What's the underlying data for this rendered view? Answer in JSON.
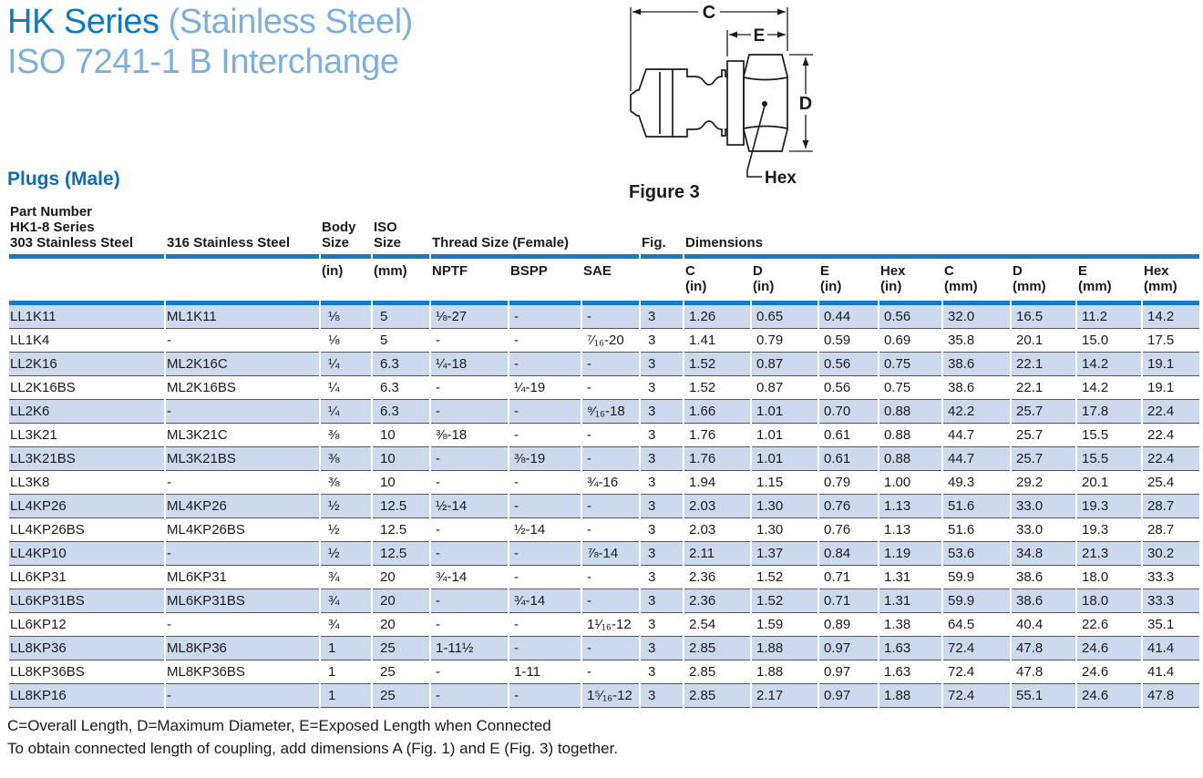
{
  "header": {
    "title_primary": "HK Series",
    "title_secondary": " (Stainless Steel)",
    "title_line2": "ISO 7241-1 B Interchange",
    "section_heading": "Plugs (Male)"
  },
  "figure": {
    "caption": "Figure 3",
    "labels": {
      "c": "C",
      "e": "E",
      "d": "D",
      "hex": "Hex"
    }
  },
  "colors": {
    "accent_blue": "#1b7abf",
    "row_shade": "#cdd9ec",
    "title_dark_blue": "#1079c1",
    "title_light_blue": "#7fb0dd",
    "heading_blue": "#0d6db6"
  },
  "table": {
    "group_header": {
      "part_number_lines": [
        "Part Number",
        "HK1-8 Series",
        "303 Stainless Steel"
      ],
      "col_316": "316 Stainless Steel",
      "body_size_lines": [
        "Body",
        "Size"
      ],
      "iso_size_lines": [
        "ISO",
        "Size"
      ],
      "thread_size": "Thread Size (Female)",
      "fig": "Fig.",
      "dimensions": "Dimensions"
    },
    "subheader": {
      "body_unit": "(in)",
      "iso_unit": "(mm)",
      "nptf": "NPTF",
      "bspp": "BSPP",
      "sae": "SAE",
      "dims": [
        [
          "C",
          "(in)"
        ],
        [
          "D",
          "(in)"
        ],
        [
          "E",
          "(in)"
        ],
        [
          "Hex",
          "(in)"
        ],
        [
          "C",
          "(mm)"
        ],
        [
          "D",
          "(mm)"
        ],
        [
          "E",
          "(mm)"
        ],
        [
          "Hex",
          "(mm)"
        ]
      ]
    },
    "rows": [
      [
        "LL1K11",
        "ML1K11",
        "⅛",
        "5",
        "⅛-27",
        "-",
        "-",
        "3",
        "1.26",
        "0.65",
        "0.44",
        "0.56",
        "32.0",
        "16.5",
        "11.2",
        "14.2"
      ],
      [
        "LL1K4",
        "-",
        "⅛",
        "5",
        "-",
        "-",
        "⁷⁄₁₆-20",
        "3",
        "1.41",
        "0.79",
        "0.59",
        "0.69",
        "35.8",
        "20.1",
        "15.0",
        "17.5"
      ],
      [
        "LL2K16",
        "ML2K16C",
        "¼",
        "6.3",
        "¼-18",
        "-",
        "-",
        "3",
        "1.52",
        "0.87",
        "0.56",
        "0.75",
        "38.6",
        "22.1",
        "14.2",
        "19.1"
      ],
      [
        "LL2K16BS",
        "ML2K16BS",
        "¼",
        "6.3",
        "-",
        "¼-19",
        "-",
        "3",
        "1.52",
        "0.87",
        "0.56",
        "0.75",
        "38.6",
        "22.1",
        "14.2",
        "19.1"
      ],
      [
        "LL2K6",
        "-",
        "¼",
        "6.3",
        "-",
        "-",
        "⁹⁄₁₆-18",
        "3",
        "1.66",
        "1.01",
        "0.70",
        "0.88",
        "42.2",
        "25.7",
        "17.8",
        "22.4"
      ],
      [
        "LL3K21",
        "ML3K21C",
        "⅜",
        "10",
        "⅜-18",
        "-",
        "-",
        "3",
        "1.76",
        "1.01",
        "0.61",
        "0.88",
        "44.7",
        "25.7",
        "15.5",
        "22.4"
      ],
      [
        "LL3K21BS",
        "ML3K21BS",
        "⅜",
        "10",
        "-",
        "⅜-19",
        "-",
        "3",
        "1.76",
        "1.01",
        "0.61",
        "0.88",
        "44.7",
        "25.7",
        "15.5",
        "22.4"
      ],
      [
        "LL3K8",
        "-",
        "⅜",
        "10",
        "-",
        "-",
        "¾-16",
        "3",
        "1.94",
        "1.15",
        "0.79",
        "1.00",
        "49.3",
        "29.2",
        "20.1",
        "25.4"
      ],
      [
        "LL4KP26",
        "ML4KP26",
        "½",
        "12.5",
        "½-14",
        "-",
        "-",
        "3",
        "2.03",
        "1.30",
        "0.76",
        "1.13",
        "51.6",
        "33.0",
        "19.3",
        "28.7"
      ],
      [
        "LL4KP26BS",
        "ML4KP26BS",
        "½",
        "12.5",
        "-",
        "½-14",
        "-",
        "3",
        "2.03",
        "1.30",
        "0.76",
        "1.13",
        "51.6",
        "33.0",
        "19.3",
        "28.7"
      ],
      [
        "LL4KP10",
        "-",
        "½",
        "12.5",
        "-",
        "-",
        "⅞-14",
        "3",
        "2.11",
        "1.37",
        "0.84",
        "1.19",
        "53.6",
        "34.8",
        "21.3",
        "30.2"
      ],
      [
        "LL6KP31",
        "ML6KP31",
        "¾",
        "20",
        "¾-14",
        "-",
        "-",
        "3",
        "2.36",
        "1.52",
        "0.71",
        "1.31",
        "59.9",
        "38.6",
        "18.0",
        "33.3"
      ],
      [
        "LL6KP31BS",
        "ML6KP31BS",
        "¾",
        "20",
        "-",
        "¾-14",
        "-",
        "3",
        "2.36",
        "1.52",
        "0.71",
        "1.31",
        "59.9",
        "38.6",
        "18.0",
        "33.3"
      ],
      [
        "LL6KP12",
        "-",
        "¾",
        "20",
        "-",
        "-",
        "1¹⁄₁₆-12",
        "3",
        "2.54",
        "1.59",
        "0.89",
        "1.38",
        "64.5",
        "40.4",
        "22.6",
        "35.1"
      ],
      [
        "LL8KP36",
        "ML8KP36",
        "1",
        "25",
        "1-11½",
        "-",
        "-",
        "3",
        "2.85",
        "1.88",
        "0.97",
        "1.63",
        "72.4",
        "47.8",
        "24.6",
        "41.4"
      ],
      [
        "LL8KP36BS",
        "ML8KP36BS",
        "1",
        "25",
        "-",
        "1-11",
        "-",
        "3",
        "2.85",
        "1.88",
        "0.97",
        "1.63",
        "72.4",
        "47.8",
        "24.6",
        "41.4"
      ],
      [
        "LL8KP16",
        "-",
        "1",
        "25",
        "-",
        "-",
        "1⁵⁄₁₆-12",
        "3",
        "2.85",
        "2.17",
        "0.97",
        "1.88",
        "72.4",
        "55.1",
        "24.6",
        "47.8"
      ]
    ]
  },
  "footnotes": [
    "C=Overall Length, D=Maximum Diameter, E=Exposed Length when Connected",
    "To obtain connected length of coupling, add dimensions A (Fig. 1) and E (Fig. 3)  together."
  ]
}
